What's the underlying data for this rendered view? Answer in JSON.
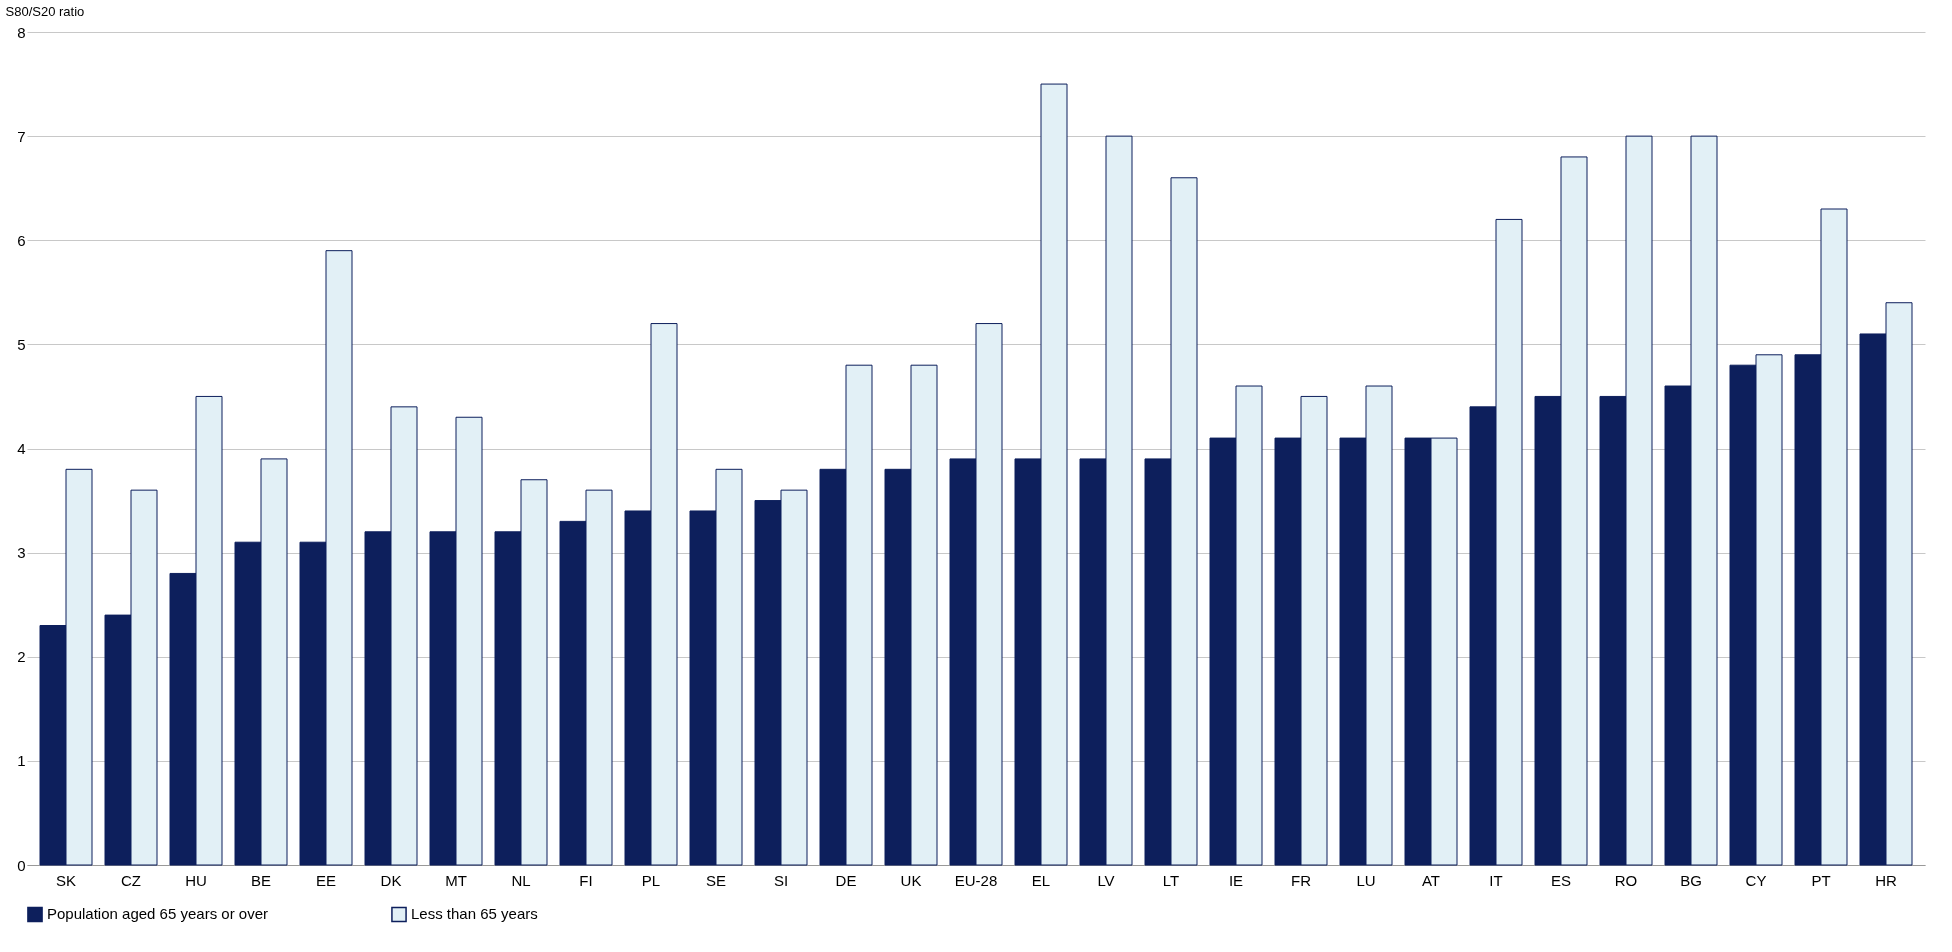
{
  "chart_data": {
    "type": "bar",
    "ylabel": "S80/S20 ratio",
    "categories": [
      "SK",
      "CZ",
      "HU",
      "BE",
      "EE",
      "DK",
      "MT",
      "NL",
      "FI",
      "PL",
      "SE",
      "SI",
      "DE",
      "UK",
      "EU-28",
      "EL",
      "LV",
      "LT",
      "IE",
      "FR",
      "LU",
      "AT",
      "IT",
      "ES",
      "RO",
      "BG",
      "CY",
      "PT",
      "HR"
    ],
    "series": [
      {
        "name": "Population aged 65 years or over",
        "color": "#0d1f5c",
        "values": [
          2.3,
          2.4,
          2.8,
          3.1,
          3.1,
          3.2,
          3.2,
          3.2,
          3.3,
          3.4,
          3.4,
          3.5,
          3.8,
          3.8,
          3.9,
          3.9,
          3.9,
          3.9,
          4.1,
          4.1,
          4.1,
          4.1,
          4.4,
          4.5,
          4.5,
          4.6,
          4.8,
          4.9,
          5.1
        ]
      },
      {
        "name": "Less than 65 years",
        "color": "#e2f0f6",
        "values": [
          3.8,
          3.6,
          4.5,
          3.9,
          5.9,
          4.4,
          4.3,
          3.7,
          3.6,
          5.2,
          3.8,
          3.6,
          4.8,
          4.8,
          5.2,
          7.5,
          7.0,
          6.6,
          4.6,
          4.5,
          4.6,
          4.1,
          6.2,
          6.8,
          7.0,
          7.0,
          4.9,
          6.3,
          5.4
        ]
      }
    ],
    "ylim": [
      0,
      8
    ],
    "yticks": [
      0,
      1,
      2,
      3,
      4,
      5,
      6,
      7,
      8
    ],
    "grid": "y",
    "legend": "bottom"
  }
}
